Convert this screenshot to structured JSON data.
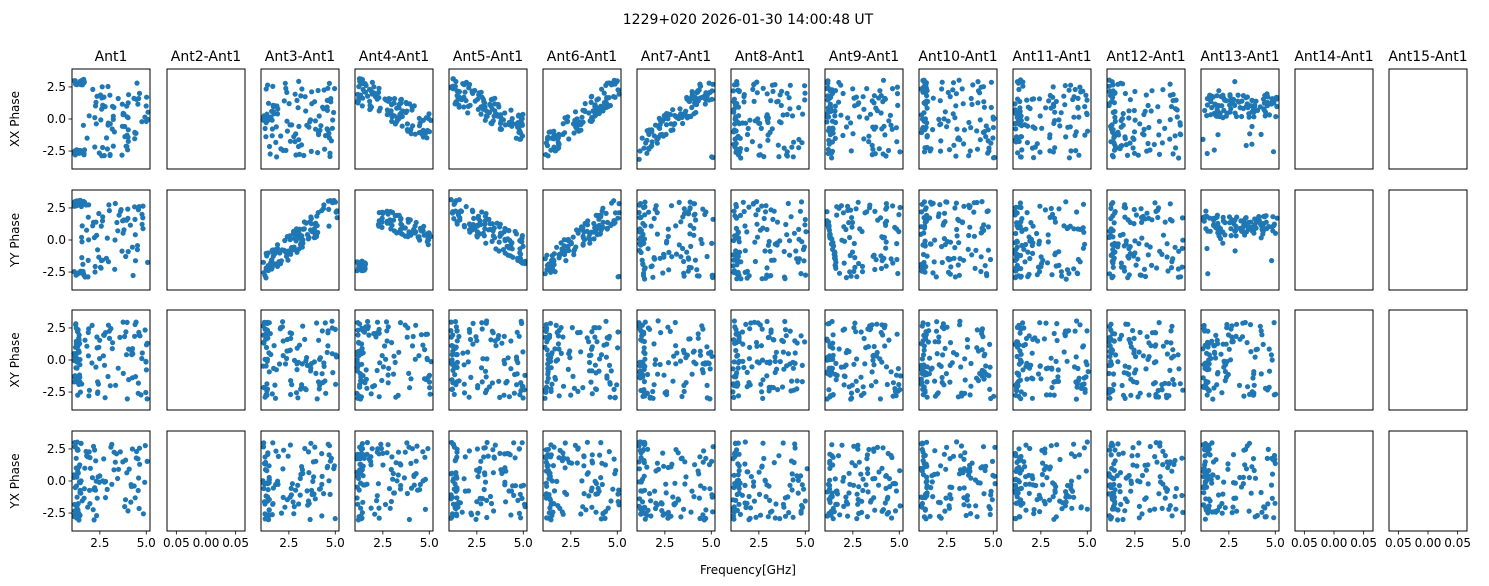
{
  "figure": {
    "title": "1229+020 2026-01-30 14:00:48 UT",
    "xlabel": "Frequency[GHz]"
  },
  "chart_data": {
    "type": "scatter",
    "title": "1229+020 2026-01-30 14:00:48 UT",
    "xlabel": "Frequency[GHz]",
    "columns": [
      "Ant1",
      "Ant2-Ant1",
      "Ant3-Ant1",
      "Ant4-Ant1",
      "Ant5-Ant1",
      "Ant6-Ant1",
      "Ant7-Ant1",
      "Ant8-Ant1",
      "Ant9-Ant1",
      "Ant10-Ant1",
      "Ant11-Ant1",
      "Ant12-Ant1",
      "Ant13-Ant1",
      "Ant14-Ant1",
      "Ant15-Ant1"
    ],
    "rows": [
      "XX Phase",
      "YY Phase",
      "XY Phase",
      "YX Phase"
    ],
    "xlim": [
      1.0,
      5.2
    ],
    "ylim": [
      -3.9,
      3.9
    ],
    "xticks": [
      "2.5",
      "5.0"
    ],
    "yticks": [
      "2.5",
      "0.0",
      "-2.5"
    ],
    "empty_xticks": [
      "0.05",
      "0.00",
      "0.05"
    ],
    "color": "#1f77b4",
    "empty_columns": [
      1,
      13,
      14
    ],
    "panel_patterns": [
      [
        "trend-up-left",
        "empty",
        "clustered",
        "trend-down",
        "trend-down",
        "trend-up",
        "trend-up",
        "scatter",
        "scatter",
        "scatter",
        "scatter",
        "scatter",
        "flat",
        "empty",
        "empty"
      ],
      [
        "trend-up-left",
        "empty",
        "trend-up",
        "trend-down-hook",
        "trend-down",
        "trend-up",
        "scatter",
        "scatter",
        "steep",
        "scatter",
        "scatter",
        "scatter",
        "flat",
        "empty",
        "empty"
      ],
      [
        "scatter",
        "empty",
        "scatter",
        "scatter",
        "scatter",
        "scatter",
        "scatter",
        "scatter",
        "scatter",
        "scatter",
        "scatter",
        "scatter",
        "scatter",
        "empty",
        "empty"
      ],
      [
        "scatter",
        "empty",
        "scatter",
        "scatter",
        "scatter",
        "scatter",
        "scatter",
        "scatter",
        "scatter",
        "scatter",
        "scatter",
        "scatter",
        "scatter",
        "empty",
        "empty"
      ]
    ]
  }
}
